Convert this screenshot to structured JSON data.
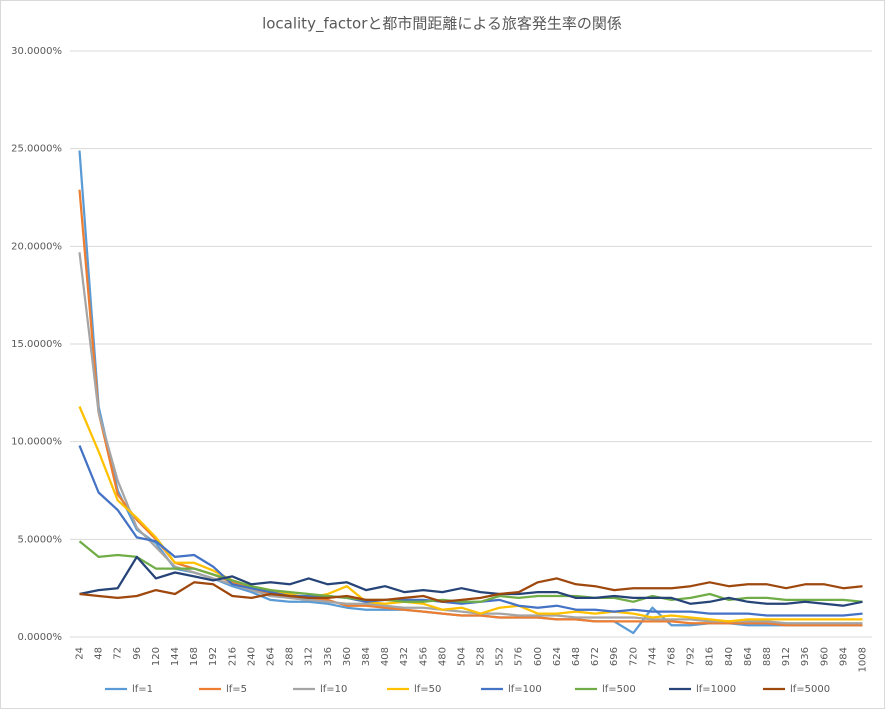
{
  "chart_data": {
    "type": "line",
    "title": "locality_factorと都市間距離による旅客発生率の関係",
    "categories": [
      "24",
      "48",
      "72",
      "96",
      "120",
      "144",
      "168",
      "192",
      "216",
      "240",
      "264",
      "288",
      "312",
      "336",
      "360",
      "384",
      "408",
      "432",
      "456",
      "480",
      "504",
      "528",
      "552",
      "576",
      "600",
      "624",
      "648",
      "672",
      "696",
      "720",
      "744",
      "768",
      "792",
      "816",
      "840",
      "864",
      "888",
      "912",
      "936",
      "960",
      "984",
      "1008"
    ],
    "ylim": [
      0,
      30
    ],
    "yticks": [
      {
        "value": 0,
        "label": "0.0000%"
      },
      {
        "value": 5,
        "label": "5.0000%"
      },
      {
        "value": 10,
        "label": "10.0000%"
      },
      {
        "value": 15,
        "label": "15.0000%"
      },
      {
        "value": 20,
        "label": "20.0000%"
      },
      {
        "value": 25,
        "label": "25.0000%"
      },
      {
        "value": 30,
        "label": "30.0000%"
      }
    ],
    "grid": true,
    "legend": "bottom",
    "series": [
      {
        "name": "lf=1",
        "color": "#5b9bd5",
        "values": [
          24.9,
          11.8,
          7.5,
          5.5,
          4.8,
          3.5,
          3.3,
          3.0,
          2.6,
          2.3,
          1.9,
          1.8,
          1.8,
          1.7,
          1.5,
          1.4,
          1.4,
          1.4,
          1.3,
          1.2,
          1.1,
          1.1,
          1.0,
          1.0,
          1.0,
          0.9,
          0.9,
          0.8,
          0.8,
          0.2,
          1.5,
          0.6,
          0.6,
          0.7,
          0.7,
          0.6,
          0.6,
          0.6,
          0.6,
          0.6,
          0.6,
          0.6
        ]
      },
      {
        "name": "lf=5",
        "color": "#ed7d31",
        "values": [
          22.9,
          11.5,
          7.3,
          6.0,
          5.0,
          3.8,
          3.5,
          3.2,
          2.8,
          2.5,
          2.2,
          2.0,
          1.9,
          1.9,
          1.6,
          1.6,
          1.5,
          1.4,
          1.3,
          1.2,
          1.1,
          1.1,
          1.0,
          1.0,
          1.0,
          0.9,
          0.9,
          0.8,
          0.8,
          0.8,
          0.8,
          0.8,
          0.7,
          0.7,
          0.7,
          0.7,
          0.7,
          0.6,
          0.6,
          0.6,
          0.6,
          0.6
        ]
      },
      {
        "name": "lf=10",
        "color": "#a5a5a5",
        "values": [
          19.7,
          11.5,
          8.0,
          5.6,
          4.6,
          3.6,
          3.3,
          3.0,
          2.7,
          2.4,
          2.1,
          2.0,
          1.9,
          1.8,
          1.7,
          1.7,
          1.6,
          1.5,
          1.5,
          1.4,
          1.3,
          1.2,
          1.2,
          1.1,
          1.1,
          1.1,
          1.0,
          1.0,
          1.0,
          1.0,
          0.9,
          0.9,
          0.9,
          0.8,
          0.8,
          0.8,
          0.8,
          0.7,
          0.7,
          0.7,
          0.7,
          0.7
        ]
      },
      {
        "name": "lf=50",
        "color": "#ffc000",
        "values": [
          11.8,
          9.5,
          7.0,
          6.1,
          5.1,
          3.8,
          3.8,
          3.4,
          2.9,
          2.6,
          2.4,
          2.2,
          2.0,
          2.2,
          2.6,
          1.8,
          1.7,
          1.8,
          1.7,
          1.4,
          1.5,
          1.2,
          1.5,
          1.6,
          1.2,
          1.2,
          1.3,
          1.2,
          1.3,
          1.2,
          1.0,
          1.1,
          1.0,
          0.9,
          0.8,
          0.9,
          0.9,
          0.9,
          0.9,
          0.9,
          0.9,
          0.9
        ]
      },
      {
        "name": "lf=100",
        "color": "#4472c4",
        "values": [
          9.8,
          7.4,
          6.5,
          5.1,
          4.9,
          4.1,
          4.2,
          3.6,
          2.7,
          2.5,
          2.3,
          2.1,
          2.1,
          2.1,
          2.0,
          1.8,
          1.9,
          1.9,
          1.9,
          1.8,
          1.7,
          1.8,
          1.9,
          1.6,
          1.5,
          1.6,
          1.4,
          1.4,
          1.3,
          1.4,
          1.3,
          1.3,
          1.3,
          1.2,
          1.2,
          1.2,
          1.1,
          1.1,
          1.1,
          1.1,
          1.1,
          1.2
        ]
      },
      {
        "name": "lf=500",
        "color": "#70ad47",
        "values": [
          4.9,
          4.1,
          4.2,
          4.1,
          3.5,
          3.5,
          3.5,
          3.2,
          2.9,
          2.6,
          2.4,
          2.3,
          2.2,
          2.1,
          2.0,
          1.9,
          1.9,
          1.8,
          1.8,
          1.9,
          1.8,
          1.8,
          2.1,
          2.0,
          2.1,
          2.1,
          2.1,
          2.0,
          2.0,
          1.8,
          2.1,
          1.9,
          2.0,
          2.2,
          1.9,
          2.0,
          2.0,
          1.9,
          1.9,
          1.9,
          1.9,
          1.8
        ]
      },
      {
        "name": "lf=1000",
        "color": "#264478",
        "values": [
          2.2,
          2.4,
          2.5,
          4.1,
          3.0,
          3.3,
          3.1,
          2.9,
          3.1,
          2.7,
          2.8,
          2.7,
          3.0,
          2.7,
          2.8,
          2.4,
          2.6,
          2.3,
          2.4,
          2.3,
          2.5,
          2.3,
          2.2,
          2.2,
          2.3,
          2.3,
          2.0,
          2.0,
          2.1,
          2.0,
          2.0,
          2.0,
          1.7,
          1.8,
          2.0,
          1.8,
          1.7,
          1.7,
          1.8,
          1.7,
          1.6,
          1.8
        ]
      },
      {
        "name": "lf=5000",
        "color": "#9e480e",
        "values": [
          2.2,
          2.1,
          2.0,
          2.1,
          2.4,
          2.2,
          2.8,
          2.7,
          2.1,
          2.0,
          2.2,
          2.1,
          2.0,
          2.0,
          2.1,
          1.9,
          1.9,
          2.0,
          2.1,
          1.8,
          1.9,
          2.0,
          2.2,
          2.3,
          2.8,
          3.0,
          2.7,
          2.6,
          2.4,
          2.5,
          2.5,
          2.5,
          2.6,
          2.8,
          2.6,
          2.7,
          2.7,
          2.5,
          2.7,
          2.7,
          2.5,
          2.6
        ]
      }
    ]
  }
}
